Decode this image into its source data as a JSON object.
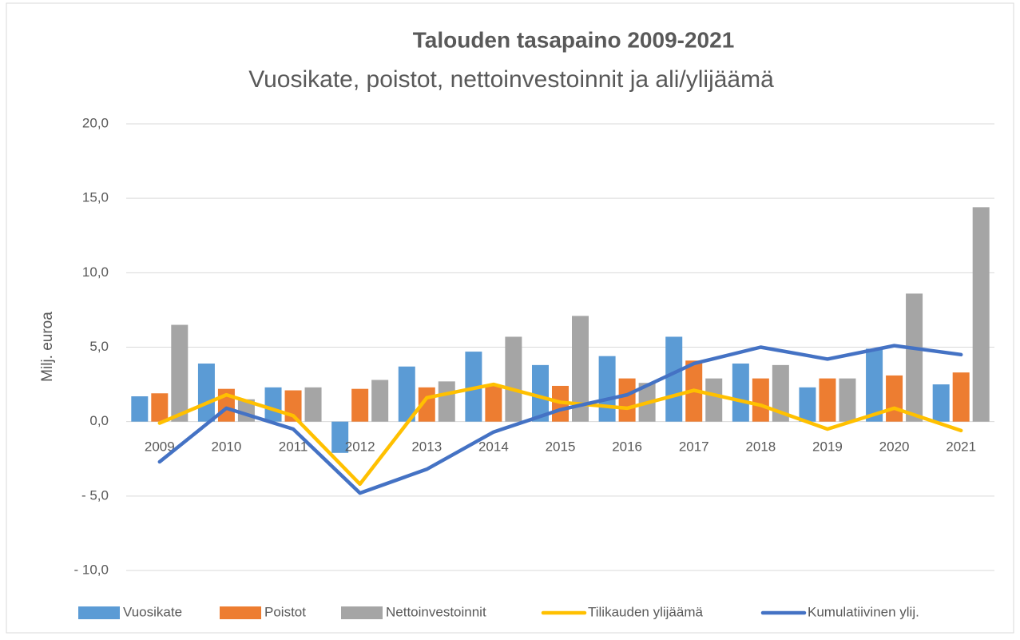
{
  "chart_data": {
    "type": "bar_line",
    "title": "Talouden tasapaino 2009-2021",
    "subtitle": "Vuosikate, poistot, nettoinvestoinnit ja ali/ylijäämä",
    "y_label": "Milj. euroa",
    "categories": [
      "2009",
      "2010",
      "2011",
      "2012",
      "2013",
      "2014",
      "2015",
      "2016",
      "2017",
      "2018",
      "2019",
      "2020",
      "2021"
    ],
    "series": [
      {
        "name": "Vuosikate",
        "type": "bar",
        "color": "#5b9bd5",
        "values": [
          1.7,
          3.9,
          2.3,
          -2.1,
          3.7,
          4.7,
          3.8,
          4.4,
          5.7,
          3.9,
          2.3,
          4.9,
          2.5
        ]
      },
      {
        "name": "Poistot",
        "type": "bar",
        "color": "#ed7d31",
        "values": [
          1.9,
          2.2,
          2.1,
          2.2,
          2.3,
          2.4,
          2.4,
          2.9,
          4.1,
          2.9,
          2.9,
          3.1,
          3.3
        ]
      },
      {
        "name": "Nettoinvestoinnit",
        "type": "bar",
        "color": "#a5a5a5",
        "values": [
          6.5,
          1.5,
          2.3,
          2.8,
          2.7,
          5.7,
          7.1,
          2.6,
          2.9,
          3.8,
          2.9,
          8.6,
          14.4
        ]
      },
      {
        "name": "Tilikauden ylijäämä",
        "type": "line",
        "color": "#ffc000",
        "values": [
          -0.1,
          1.8,
          0.4,
          -4.2,
          1.6,
          2.5,
          1.3,
          0.9,
          2.1,
          1.1,
          -0.5,
          0.9,
          -0.6
        ]
      },
      {
        "name": "Kumulatiivinen ylij.",
        "type": "line",
        "color": "#4472c4",
        "values": [
          -2.7,
          0.9,
          -0.5,
          -4.8,
          -3.2,
          -0.7,
          0.8,
          1.8,
          3.9,
          5.0,
          4.2,
          5.1,
          4.5
        ]
      }
    ],
    "ylim": [
      -10,
      20
    ],
    "yticks": [
      {
        "value": 20,
        "label": "20,0"
      },
      {
        "value": 15,
        "label": "15,0"
      },
      {
        "value": 10,
        "label": "10,0"
      },
      {
        "value": 5,
        "label": "5,0"
      },
      {
        "value": 0,
        "label": "0,0"
      },
      {
        "value": -5,
        "label": "- 5,0"
      },
      {
        "value": -10,
        "label": "- 10,0"
      }
    ],
    "grid": true,
    "legend": "bottom"
  }
}
